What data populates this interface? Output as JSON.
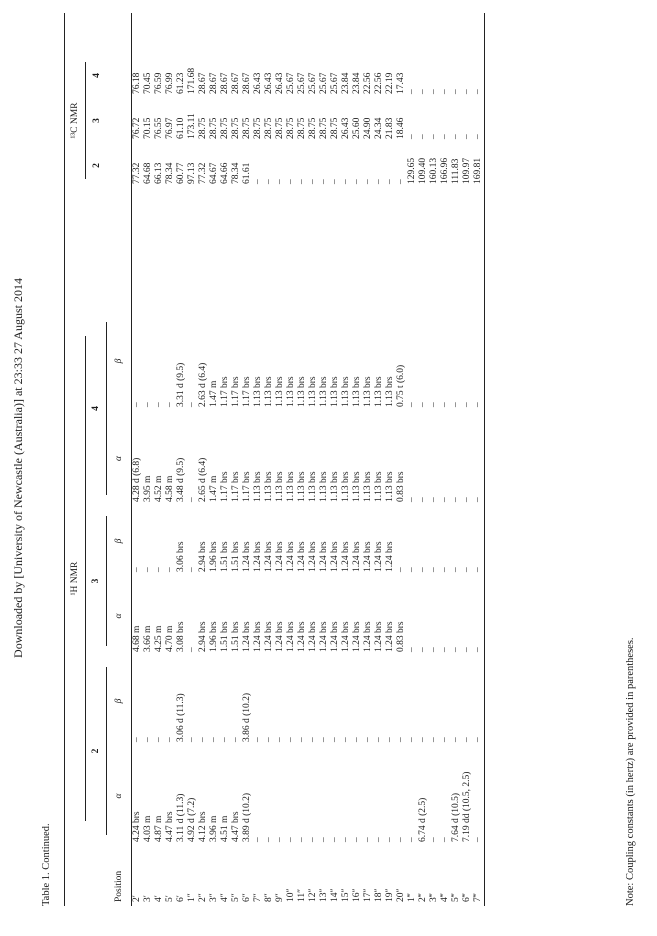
{
  "download_notice": "Downloaded by [University of Newcastle (Australia)] at 23:33 27 August 2014",
  "caption": "Table 1. Continued.",
  "headers": {
    "h_group": "¹H NMR",
    "c_group": "¹³C NMR",
    "compounds_h": [
      "2",
      "3",
      "4"
    ],
    "compounds_c": [
      "2",
      "3",
      "4"
    ],
    "position": "Position",
    "alpha": "α",
    "beta": "β"
  },
  "rows": [
    {
      "pos": "2′",
      "c2a": "4.24 brs",
      "c2b": "–",
      "c3a": "4.68 m",
      "c3b": "–",
      "c4a": "4.28 d (6.8)",
      "c4b": "–",
      "n2": "77.32",
      "n3": "76.72",
      "n4": "76.18"
    },
    {
      "pos": "3′",
      "c2a": "4.03 m",
      "c2b": "–",
      "c3a": "3.66 m",
      "c3b": "–",
      "c4a": "3.95 m",
      "c4b": "–",
      "n2": "64.68",
      "n3": "70.15",
      "n4": "70.45"
    },
    {
      "pos": "4′",
      "c2a": "4.87 m",
      "c2b": "–",
      "c3a": "4.25 m",
      "c3b": "–",
      "c4a": "4.52 m",
      "c4b": "–",
      "n2": "66.13",
      "n3": "76.55",
      "n4": "76.59"
    },
    {
      "pos": "5′",
      "c2a": "4.47 brs",
      "c2b": "–",
      "c3a": "4.70 m",
      "c3b": "–",
      "c4a": "4.58 m",
      "c4b": "–",
      "n2": "78.34",
      "n3": "76.97",
      "n4": "76.99"
    },
    {
      "pos": "6′",
      "c2a": "3.11 d (11.3)",
      "c2b": "3.06 d (11.3)",
      "c3a": "3.08 brs",
      "c3b": "3.06 brs",
      "c4a": "3.48 d (9.5)",
      "c4b": "3.31 d (9.5)",
      "n2": "60.77",
      "n3": "61.10",
      "n4": "61.23"
    },
    {
      "pos": "1″",
      "c2a": "4.92 d (7.2)",
      "c2b": "–",
      "c3a": "–",
      "c3b": "–",
      "c4a": "–",
      "c4b": "–",
      "n2": "97.13",
      "n3": "173.11",
      "n4": "171.68"
    },
    {
      "pos": "2″",
      "c2a": "4.12 brs",
      "c2b": "–",
      "c3a": "2.94 brs",
      "c3b": "2.94 brs",
      "c4a": "2.65 d (6.4)",
      "c4b": "2.63 d (6.4)",
      "n2": "77.32",
      "n3": "28.75",
      "n4": "28.67"
    },
    {
      "pos": "3″",
      "c2a": "3.96 m",
      "c2b": "–",
      "c3a": "1.96 brs",
      "c3b": "1.96 brs",
      "c4a": "1.47 m",
      "c4b": "1.47 m",
      "n2": "64.67",
      "n3": "28.75",
      "n4": "28.67"
    },
    {
      "pos": "4″",
      "c2a": "4.51 m",
      "c2b": "–",
      "c3a": "1.51 brs",
      "c3b": "1.51 brs",
      "c4a": "1.17 brs",
      "c4b": "1.17 brs",
      "n2": "64.66",
      "n3": "28.75",
      "n4": "28.67"
    },
    {
      "pos": "5″",
      "c2a": "4.47 brs",
      "c2b": "–",
      "c3a": "1.51 brs",
      "c3b": "1.51 brs",
      "c4a": "1.17 brs",
      "c4b": "1.17 brs",
      "n2": "78.34",
      "n3": "28.75",
      "n4": "28.67"
    },
    {
      "pos": "6″",
      "c2a": "3.89 d (10.2)",
      "c2b": "3.86 d (10.2)",
      "c3a": "1.24 brs",
      "c3b": "1.24 brs",
      "c4a": "1.17 brs",
      "c4b": "1.17 brs",
      "n2": "61.61",
      "n3": "28.75",
      "n4": "28.67"
    },
    {
      "pos": "7″",
      "c2a": "–",
      "c2b": "–",
      "c3a": "1.24 brs",
      "c3b": "1.24 brs",
      "c4a": "1.13 brs",
      "c4b": "1.13 brs",
      "n2": "–",
      "n3": "28.75",
      "n4": "26.43"
    },
    {
      "pos": "8″",
      "c2a": "–",
      "c2b": "–",
      "c3a": "1.24 brs",
      "c3b": "1.24 brs",
      "c4a": "1.13 brs",
      "c4b": "1.13 brs",
      "n2": "–",
      "n3": "28.75",
      "n4": "26.43"
    },
    {
      "pos": "9″",
      "c2a": "–",
      "c2b": "–",
      "c3a": "1.24 brs",
      "c3b": "1.24 brs",
      "c4a": "1.13 brs",
      "c4b": "1.13 brs",
      "n2": "–",
      "n3": "28.75",
      "n4": "26.43"
    },
    {
      "pos": "10″",
      "c2a": "–",
      "c2b": "–",
      "c3a": "1.24 brs",
      "c3b": "1.24 brs",
      "c4a": "1.13 brs",
      "c4b": "1.13 brs",
      "n2": "–",
      "n3": "28.75",
      "n4": "25.67"
    },
    {
      "pos": "11″",
      "c2a": "–",
      "c2b": "–",
      "c3a": "1.24 brs",
      "c3b": "1.24 brs",
      "c4a": "1.13 brs",
      "c4b": "1.13 brs",
      "n2": "–",
      "n3": "28.75",
      "n4": "25.67"
    },
    {
      "pos": "12″",
      "c2a": "–",
      "c2b": "–",
      "c3a": "1.24 brs",
      "c3b": "1.24 brs",
      "c4a": "1.13 brs",
      "c4b": "1.13 brs",
      "n2": "–",
      "n3": "28.75",
      "n4": "25.67"
    },
    {
      "pos": "13″",
      "c2a": "–",
      "c2b": "–",
      "c3a": "1.24 brs",
      "c3b": "1.24 brs",
      "c4a": "1.13 brs",
      "c4b": "1.13 brs",
      "n2": "–",
      "n3": "28.75",
      "n4": "25.67"
    },
    {
      "pos": "14″",
      "c2a": "–",
      "c2b": "–",
      "c3a": "1.24 brs",
      "c3b": "1.24 brs",
      "c4a": "1.13 brs",
      "c4b": "1.13 brs",
      "n2": "–",
      "n3": "28.75",
      "n4": "25.67"
    },
    {
      "pos": "15″",
      "c2a": "–",
      "c2b": "–",
      "c3a": "1.24 brs",
      "c3b": "1.24 brs",
      "c4a": "1.13 brs",
      "c4b": "1.13 brs",
      "n2": "–",
      "n3": "26.43",
      "n4": "23.84"
    },
    {
      "pos": "16″",
      "c2a": "–",
      "c2b": "–",
      "c3a": "1.24 brs",
      "c3b": "1.24 brs",
      "c4a": "1.13 brs",
      "c4b": "1.13 brs",
      "n2": "–",
      "n3": "25.60",
      "n4": "23.84"
    },
    {
      "pos": "17″",
      "c2a": "–",
      "c2b": "–",
      "c3a": "1.24 brs",
      "c3b": "1.24 brs",
      "c4a": "1.13 brs",
      "c4b": "1.13 brs",
      "n2": "–",
      "n3": "24.90",
      "n4": "22.56"
    },
    {
      "pos": "18″",
      "c2a": "–",
      "c2b": "–",
      "c3a": "1.24 brs",
      "c3b": "1.24 brs",
      "c4a": "1.13 brs",
      "c4b": "1.13 brs",
      "n2": "–",
      "n3": "24.34",
      "n4": "22.56"
    },
    {
      "pos": "19″",
      "c2a": "–",
      "c2b": "–",
      "c3a": "1.24 brs",
      "c3b": "1.24 brs",
      "c4a": "1.13 brs",
      "c4b": "1.13 brs",
      "n2": "–",
      "n3": "21.83",
      "n4": "22.19"
    },
    {
      "pos": "20″",
      "c2a": "–",
      "c2b": "–",
      "c3a": "0.83 brs",
      "c3b": "–",
      "c4a": "0.83 brs",
      "c4b": "0.75 t (6.0)",
      "n2": "–",
      "n3": "18.46",
      "n4": "17.43"
    },
    {
      "pos": "1‴",
      "c2a": "–",
      "c2b": "–",
      "c3a": "–",
      "c3b": "–",
      "c4a": "–",
      "c4b": "–",
      "n2": "129.65",
      "n3": "–",
      "n4": "–"
    },
    {
      "pos": "2‴",
      "c2a": "6.74 d (2.5)",
      "c2b": "–",
      "c3a": "–",
      "c3b": "–",
      "c4a": "–",
      "c4b": "–",
      "n2": "109.40",
      "n3": "–",
      "n4": "–"
    },
    {
      "pos": "3‴",
      "c2a": "–",
      "c2b": "–",
      "c3a": "–",
      "c3b": "–",
      "c4a": "–",
      "c4b": "–",
      "n2": "160.13",
      "n3": "–",
      "n4": "–"
    },
    {
      "pos": "4‴",
      "c2a": "–",
      "c2b": "–",
      "c3a": "–",
      "c3b": "–",
      "c4a": "–",
      "c4b": "–",
      "n2": "166.96",
      "n3": "–",
      "n4": "–"
    },
    {
      "pos": "5‴",
      "c2a": "7.64 d (10.5)",
      "c2b": "–",
      "c3a": "–",
      "c3b": "–",
      "c4a": "–",
      "c4b": "–",
      "n2": "111.83",
      "n3": "–",
      "n4": "–"
    },
    {
      "pos": "6‴",
      "c2a": "7.19 dd (10.5, 2.5)",
      "c2b": "–",
      "c3a": "–",
      "c3b": "–",
      "c4a": "–",
      "c4b": "–",
      "n2": "109.97",
      "n3": "–",
      "n4": "–"
    },
    {
      "pos": "7‴",
      "c2a": "–",
      "c2b": "–",
      "c3a": "–",
      "c3b": "–",
      "c4a": "–",
      "c4b": "–",
      "n2": "169.81",
      "n3": "–",
      "n4": "–"
    }
  ],
  "note": "Note: Coupling constants (in hertz) are provided in parentheses."
}
